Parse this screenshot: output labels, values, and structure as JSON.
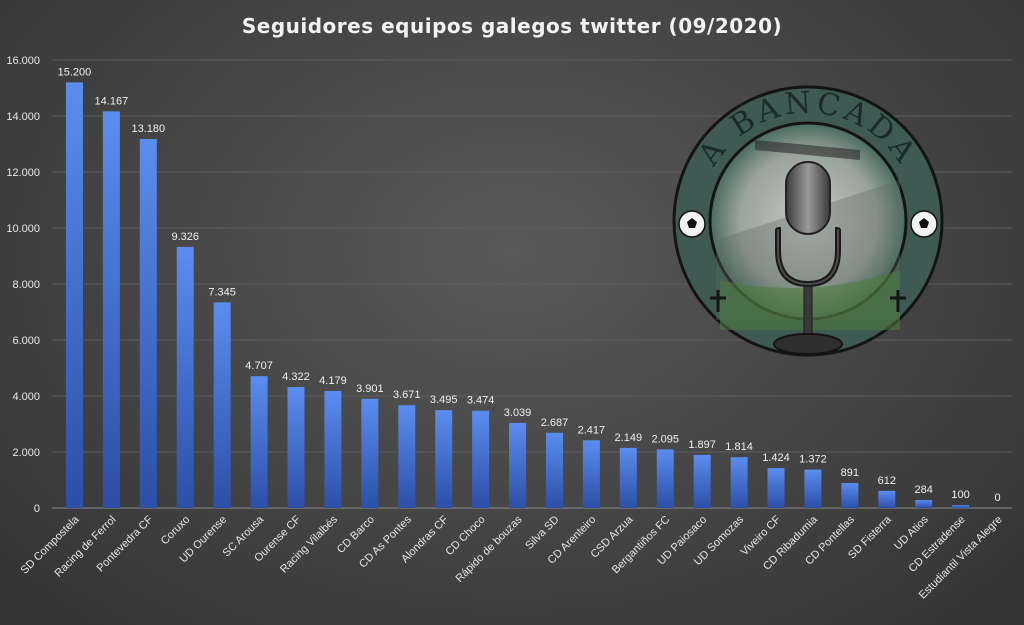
{
  "chart_data": {
    "type": "bar",
    "title": "Seguidores  equipos  galegos  twitter  (09/2020)",
    "categories": [
      "SD Compostela",
      "Racing de Ferrol",
      "Pontevedra CF",
      "Coruxo",
      "UD Ourense",
      "SC Arousa",
      "Ourense CF",
      "Racing Vilalbés",
      "CD Barco",
      "CD As Pontes",
      "Alondras CF",
      "CD Choco",
      "Rápido de bouzas",
      "Silva SD",
      "CD Arenteiro",
      "CSD Arzua",
      "Bergantiños FC",
      "UD Paiosaco",
      "UD Somozas",
      "Viveiro CF",
      "CD Ribadumia",
      "CD Pontellas",
      "SD Fisterra",
      "UD Atios",
      "CD Estradense",
      "Estudiantil Vista Alegre"
    ],
    "values": [
      15200,
      14167,
      13180,
      9326,
      7345,
      4707,
      4322,
      4179,
      3901,
      3671,
      3495,
      3474,
      3039,
      2687,
      2417,
      2149,
      2095,
      1897,
      1814,
      1424,
      1372,
      891,
      612,
      284,
      100,
      0
    ],
    "data_labels": [
      "15.200",
      "14.167",
      "13.180",
      "9.326",
      "7.345",
      "4.707",
      "4.322",
      "4.179",
      "3.901",
      "3.671",
      "3.495",
      "3.474",
      "3.039",
      "2.687",
      "2.417",
      "2.149",
      "2.095",
      "1.897",
      "1.814",
      "1.424",
      "1.372",
      "891",
      "612",
      "284",
      "100",
      "0"
    ],
    "ylim": [
      0,
      16000
    ],
    "yticks": [
      0,
      2000,
      4000,
      6000,
      8000,
      10000,
      12000,
      14000,
      16000
    ],
    "ytick_labels": [
      "0",
      "2.000",
      "4.000",
      "6.000",
      "8.000",
      "10.000",
      "12.000",
      "14.000",
      "16.000"
    ],
    "xlabel": "",
    "ylabel": "",
    "grid": true,
    "colors": {
      "bar_top": "#5b8def",
      "bar_bottom": "#2c4fa8",
      "text": "#e6e6e6"
    }
  },
  "logo": {
    "text": "A BANCADA",
    "icon": "microphone-icon",
    "colors": {
      "ring": "#3f5a54",
      "outline": "#151515"
    }
  }
}
